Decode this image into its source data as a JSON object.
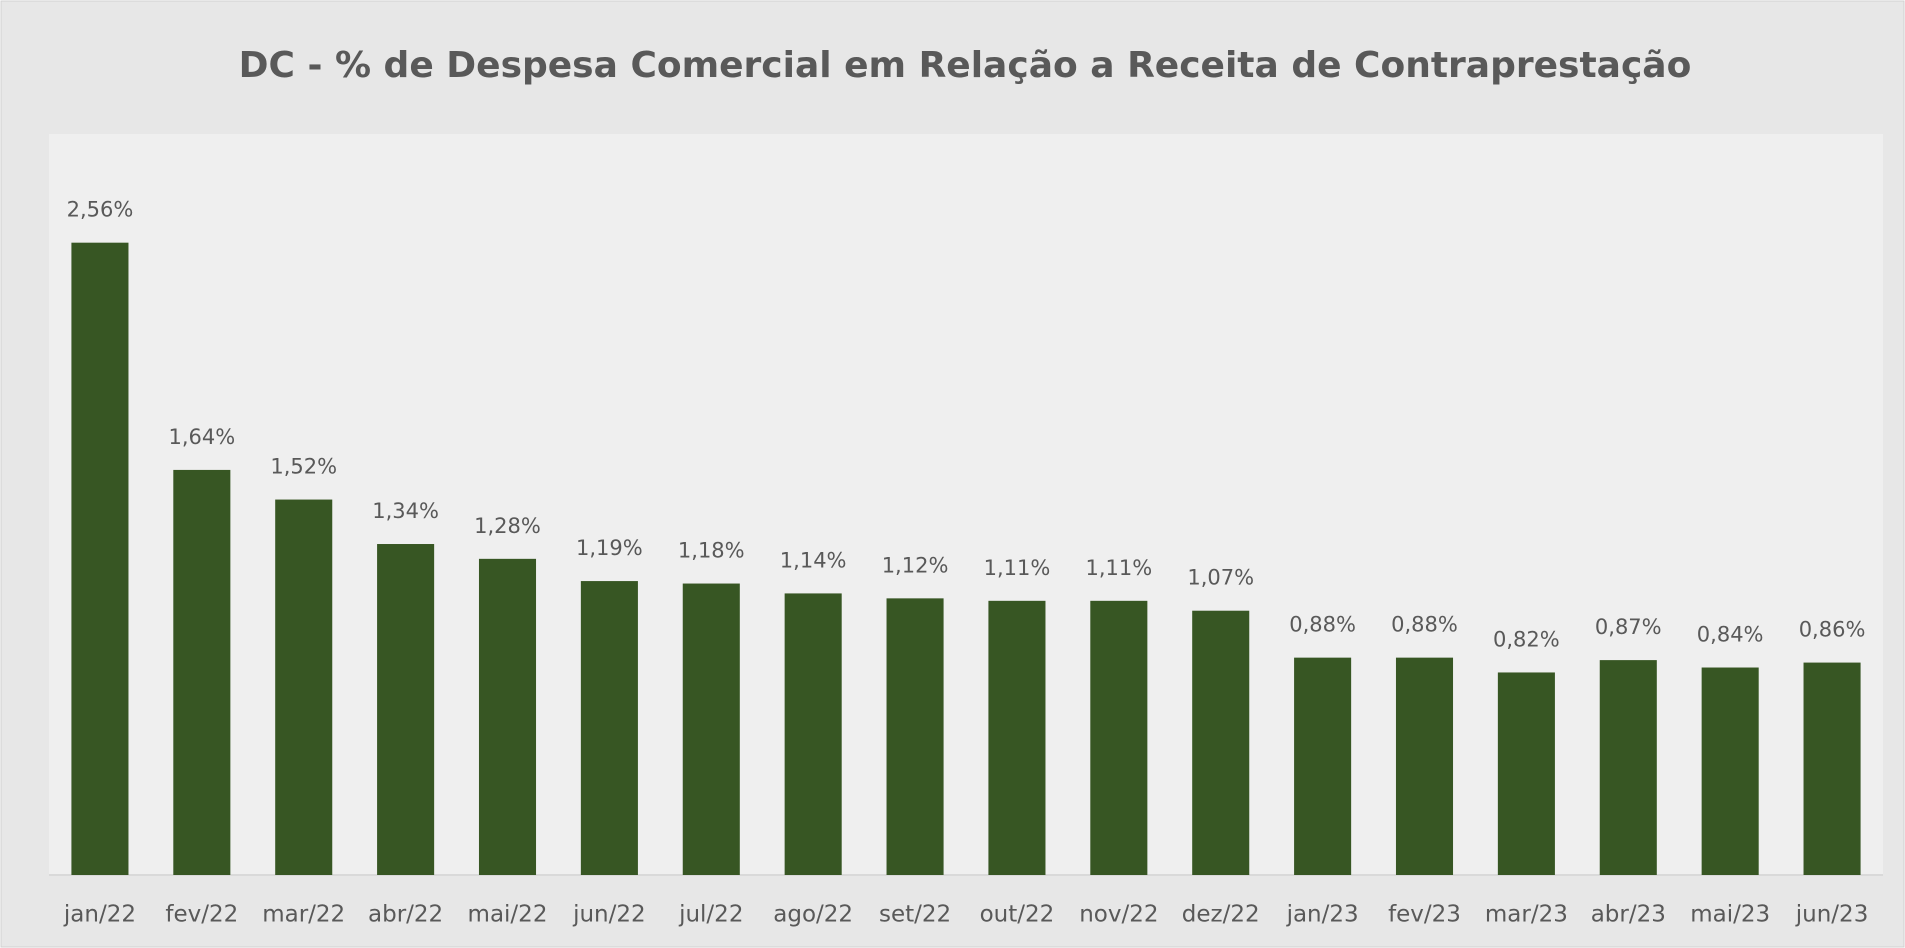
{
  "chart_data": {
    "type": "bar",
    "title": "DC - % de Despesa Comercial em Relação a Receita de Contraprestação",
    "categories": [
      "jan/22",
      "fev/22",
      "mar/22",
      "abr/22",
      "mai/22",
      "jun/22",
      "jul/22",
      "ago/22",
      "set/22",
      "out/22",
      "nov/22",
      "dez/22",
      "jan/23",
      "fev/23",
      "mar/23",
      "abr/23",
      "mai/23",
      "jun/23"
    ],
    "values": [
      2.56,
      1.64,
      1.52,
      1.34,
      1.28,
      1.19,
      1.18,
      1.14,
      1.12,
      1.11,
      1.11,
      1.07,
      0.88,
      0.88,
      0.82,
      0.87,
      0.84,
      0.86
    ],
    "value_labels": [
      "2,56%",
      "1,64%",
      "1,52%",
      "1,34%",
      "1,28%",
      "1,19%",
      "1,18%",
      "1,14%",
      "1,12%",
      "1,11%",
      "1,11%",
      "1,07%",
      "0,88%",
      "0,88%",
      "0,82%",
      "0,87%",
      "0,84%",
      "0,86%"
    ],
    "color": "#375623",
    "ylim": [
      0,
      3
    ]
  }
}
